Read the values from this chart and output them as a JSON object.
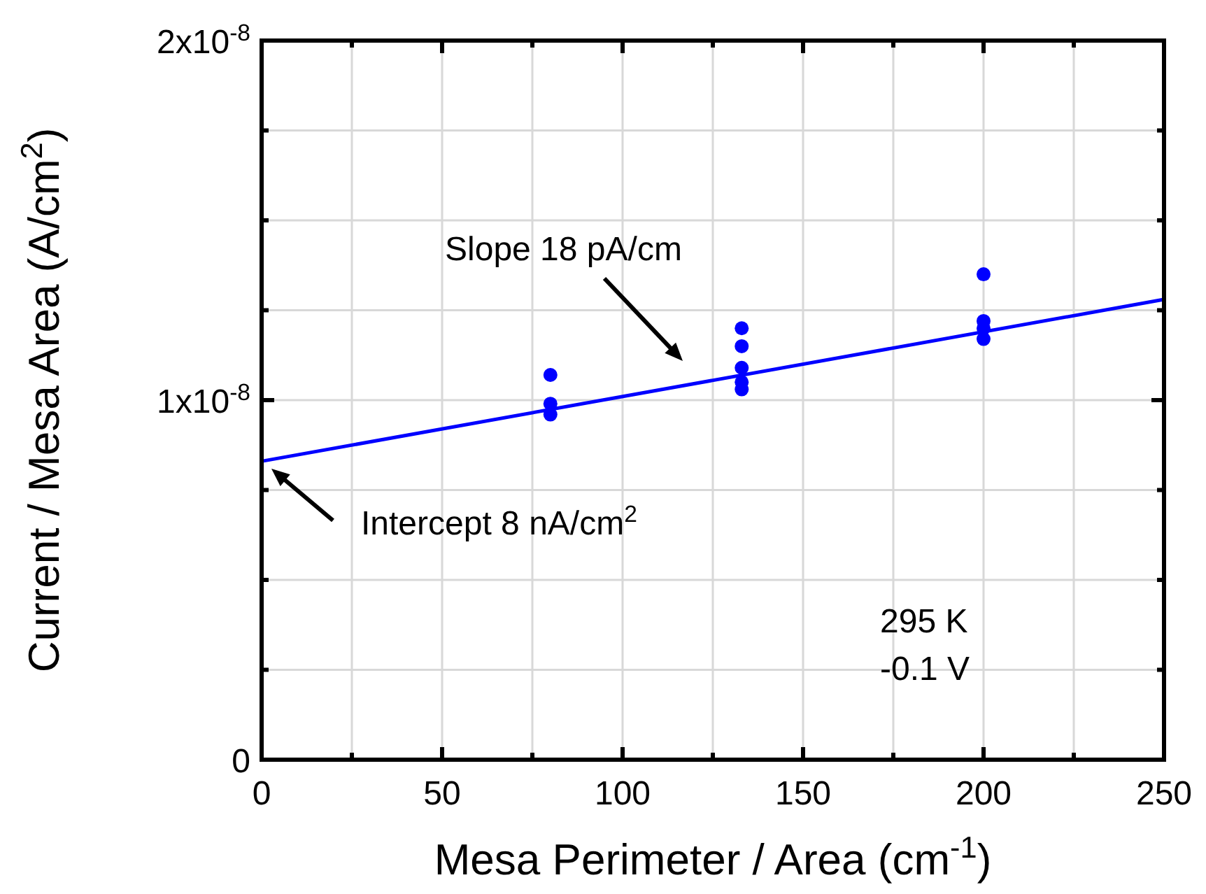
{
  "chart_data": {
    "type": "scatter",
    "xlabel": "Mesa Perimeter / Area (cm$^{-1}$)",
    "ylabel": "Current / Mesa Area (A/cm$^{2}$)",
    "xlim": [
      0,
      250
    ],
    "ylim": [
      0,
      2e-08
    ],
    "xticks": [
      0,
      {
        "value": 25,
        "label": null
      },
      50,
      {
        "value": 75,
        "label": null
      },
      100,
      {
        "value": 125,
        "label": null
      },
      150,
      {
        "value": 175,
        "label": null
      },
      200,
      {
        "value": 225,
        "label": null
      },
      250
    ],
    "yticks": [
      0,
      {
        "value": 2.5e-09,
        "label": null
      },
      {
        "value": 5e-09,
        "label": null
      },
      {
        "value": 7.5e-09,
        "label": null
      },
      {
        "value": 1e-08,
        "label": "1x10$^{-8}$"
      },
      {
        "value": 1.25e-08,
        "label": null
      },
      {
        "value": 1.5e-08,
        "label": null
      },
      {
        "value": 1.75e-08,
        "label": null
      },
      {
        "value": 2e-08,
        "label": "2x10$^{-8}$"
      }
    ],
    "grid": true,
    "series": [
      {
        "color": "#0000ff",
        "marker": "circle",
        "x": [
          80,
          80,
          80,
          133,
          133,
          133,
          133,
          133,
          200,
          200,
          200,
          200
        ],
        "values": [
          1.07e-08,
          9.9e-09,
          9.6e-09,
          1.2e-08,
          1.15e-08,
          1.09e-08,
          1.05e-08,
          1.03e-08,
          1.35e-08,
          1.22e-08,
          1.2e-08,
          1.17e-08
        ]
      },
      {
        "type": "line",
        "color": "#0000ff",
        "x": [
          0,
          250
        ],
        "values": [
          8.3e-09,
          1.28e-08
        ]
      }
    ],
    "annotations": [
      "Slope 18 pA/cm",
      "Intercept 8 nA/cm$^{2}$",
      "295 K",
      "-0.1 V"
    ]
  }
}
